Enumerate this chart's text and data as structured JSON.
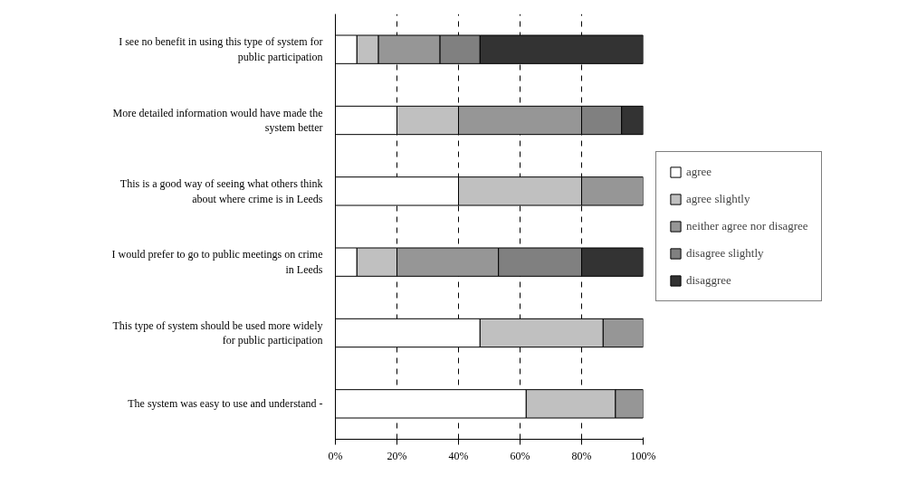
{
  "chart_data": {
    "type": "bar",
    "orientation": "horizontal",
    "stacked": true,
    "categories": [
      "I see no benefit in using this type of system for public participation",
      "More detailed information would have made the system better",
      "This is a good way of seeing what others think about where crime is in Leeds",
      "I would prefer to go to public meetings on crime in Leeds",
      "This type of system should be used more widely for public participation",
      "The system was easy to use and understand -"
    ],
    "series": [
      {
        "name": "agree",
        "color": "#ffffff",
        "values": [
          7,
          20,
          40,
          7,
          47,
          62
        ]
      },
      {
        "name": "agree slightly",
        "color": "#c0c0c0",
        "values": [
          7,
          20,
          40,
          13,
          40,
          29
        ]
      },
      {
        "name": "neither agree nor disagree",
        "color": "#969696",
        "values": [
          20,
          40,
          20,
          33,
          13,
          9
        ]
      },
      {
        "name": "disagree slightly",
        "color": "#808080",
        "values": [
          13,
          13,
          null,
          27,
          null,
          null
        ]
      },
      {
        "name": "disaggree",
        "color": "#333333",
        "values": [
          53,
          7,
          null,
          20,
          null,
          null
        ]
      }
    ],
    "xlim": [
      0,
      100
    ],
    "xticks": [
      {
        "value": 0,
        "label": "0%"
      },
      {
        "value": 20,
        "label": "20%"
      },
      {
        "value": 40,
        "label": "40%"
      },
      {
        "value": 60,
        "label": "60%"
      },
      {
        "value": 80,
        "label": "80%"
      },
      {
        "value": 100,
        "label": "100%"
      }
    ],
    "grid": "x",
    "legend": "right"
  }
}
